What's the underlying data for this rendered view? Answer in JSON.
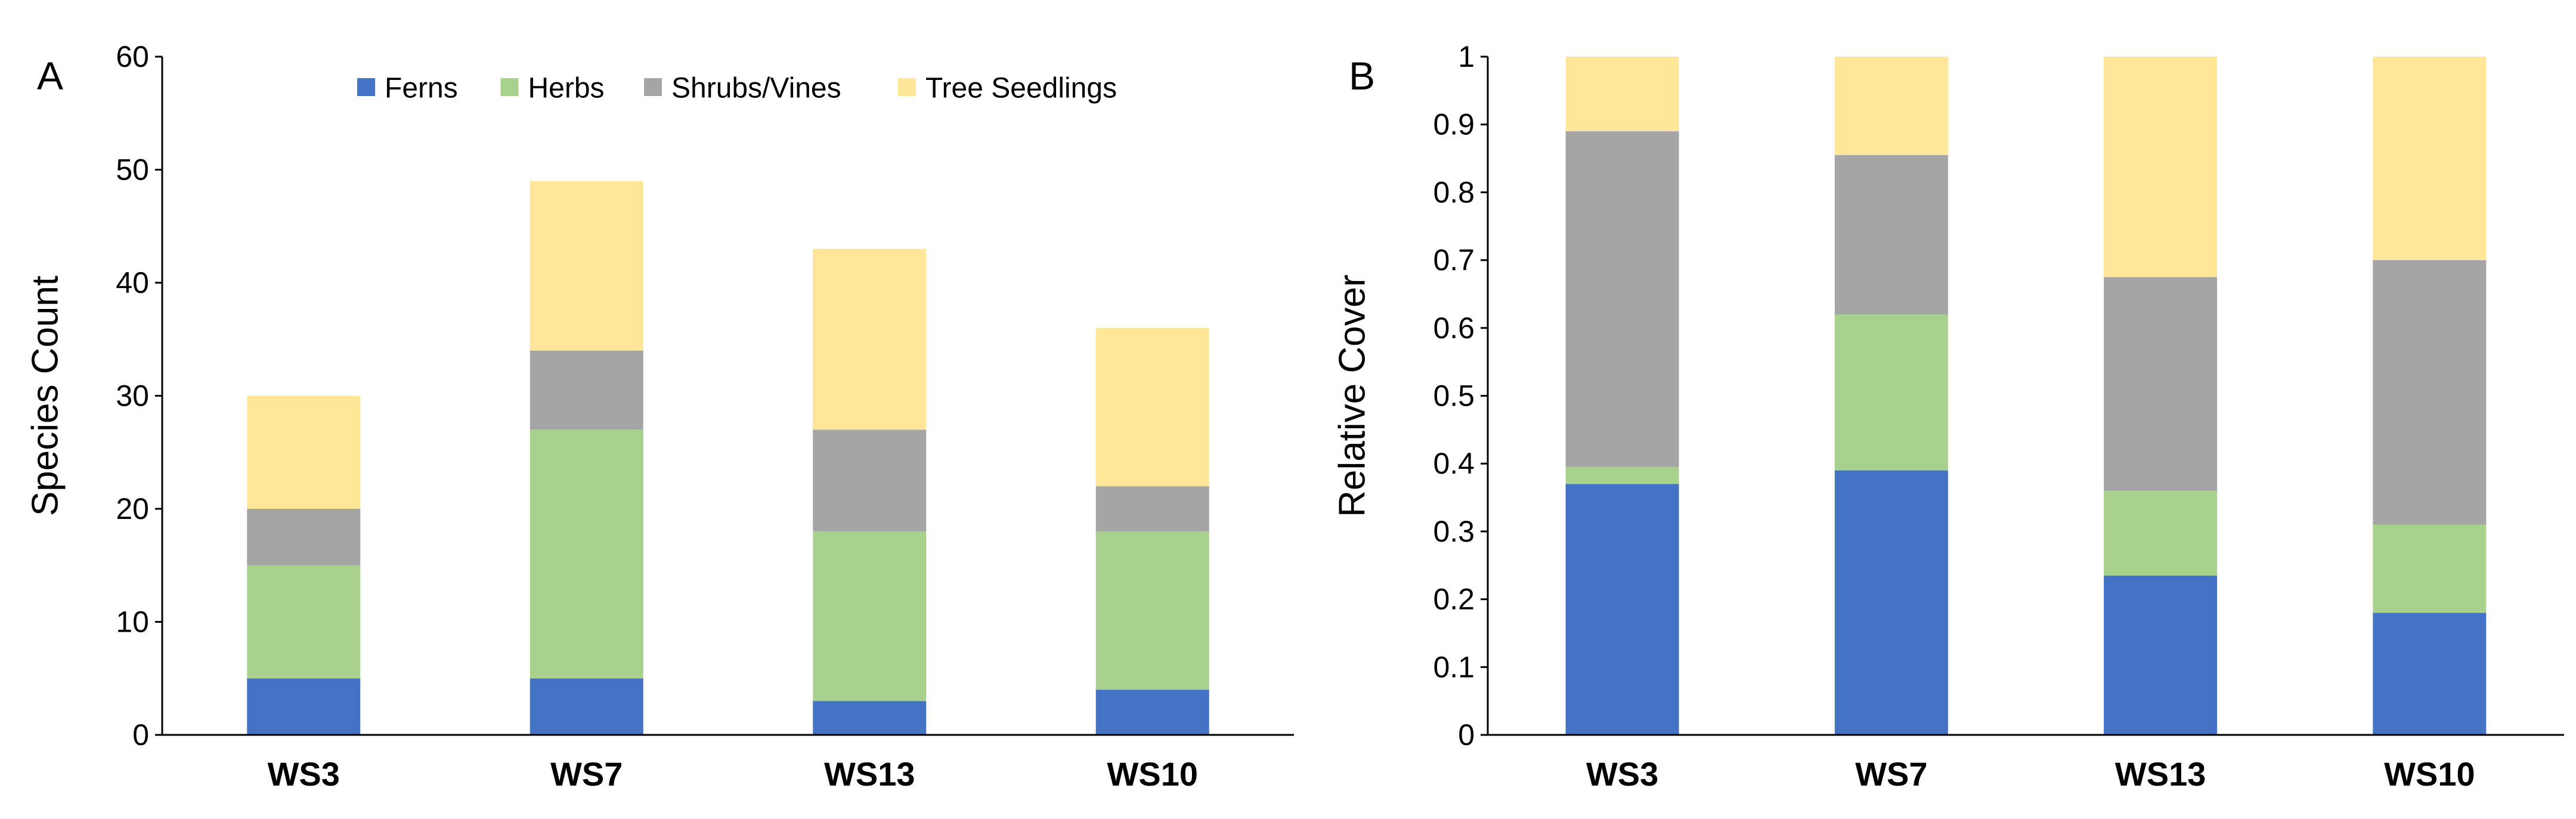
{
  "colors": {
    "Ferns": "#4472C4",
    "Herbs": "#A9D18E",
    "Shrubs/Vines": "#A5A5A5",
    "Tree Seedlings": "#FFE699"
  },
  "chart_data": [
    {
      "type": "bar",
      "stacked": true,
      "panel": "A",
      "title": "",
      "xlabel": "",
      "ylabel": "Species Count",
      "ylim": [
        0,
        60
      ],
      "yticks": [
        0,
        10,
        20,
        30,
        40,
        50,
        60
      ],
      "ytick_labels": [
        "0",
        "10",
        "20",
        "30",
        "40",
        "50",
        "60"
      ],
      "categories": [
        "WS3",
        "WS7",
        "WS13",
        "WS10"
      ],
      "legend": {
        "position": "top-center",
        "entries": [
          "Ferns",
          "Herbs",
          "Shrubs/Vines",
          "Tree Seedlings"
        ]
      },
      "series": [
        {
          "name": "Ferns",
          "values": [
            5,
            5,
            3,
            4
          ]
        },
        {
          "name": "Herbs",
          "values": [
            10,
            22,
            15,
            14
          ]
        },
        {
          "name": "Shrubs/Vines",
          "values": [
            5,
            7,
            9,
            4
          ]
        },
        {
          "name": "Tree Seedlings",
          "values": [
            10,
            15,
            16,
            14
          ]
        }
      ]
    },
    {
      "type": "bar",
      "stacked": true,
      "panel": "B",
      "title": "",
      "xlabel": "",
      "ylabel": "Relative Cover",
      "ylim": [
        0,
        1
      ],
      "yticks": [
        0,
        0.1,
        0.2,
        0.3,
        0.4,
        0.5,
        0.6,
        0.7,
        0.8,
        0.9,
        1
      ],
      "ytick_labels": [
        "0",
        "0.1",
        "0.2",
        "0.3",
        "0.4",
        "0.5",
        "0.6",
        "0.7",
        "0.8",
        "0.9",
        "1"
      ],
      "categories": [
        "WS3",
        "WS7",
        "WS13",
        "WS10"
      ],
      "series": [
        {
          "name": "Ferns",
          "values": [
            0.37,
            0.39,
            0.235,
            0.18
          ]
        },
        {
          "name": "Herbs",
          "values": [
            0.025,
            0.23,
            0.125,
            0.13
          ]
        },
        {
          "name": "Shrubs/Vines",
          "values": [
            0.495,
            0.235,
            0.315,
            0.39
          ]
        },
        {
          "name": "Tree Seedlings",
          "values": [
            0.11,
            0.145,
            0.325,
            0.3
          ]
        }
      ]
    }
  ]
}
